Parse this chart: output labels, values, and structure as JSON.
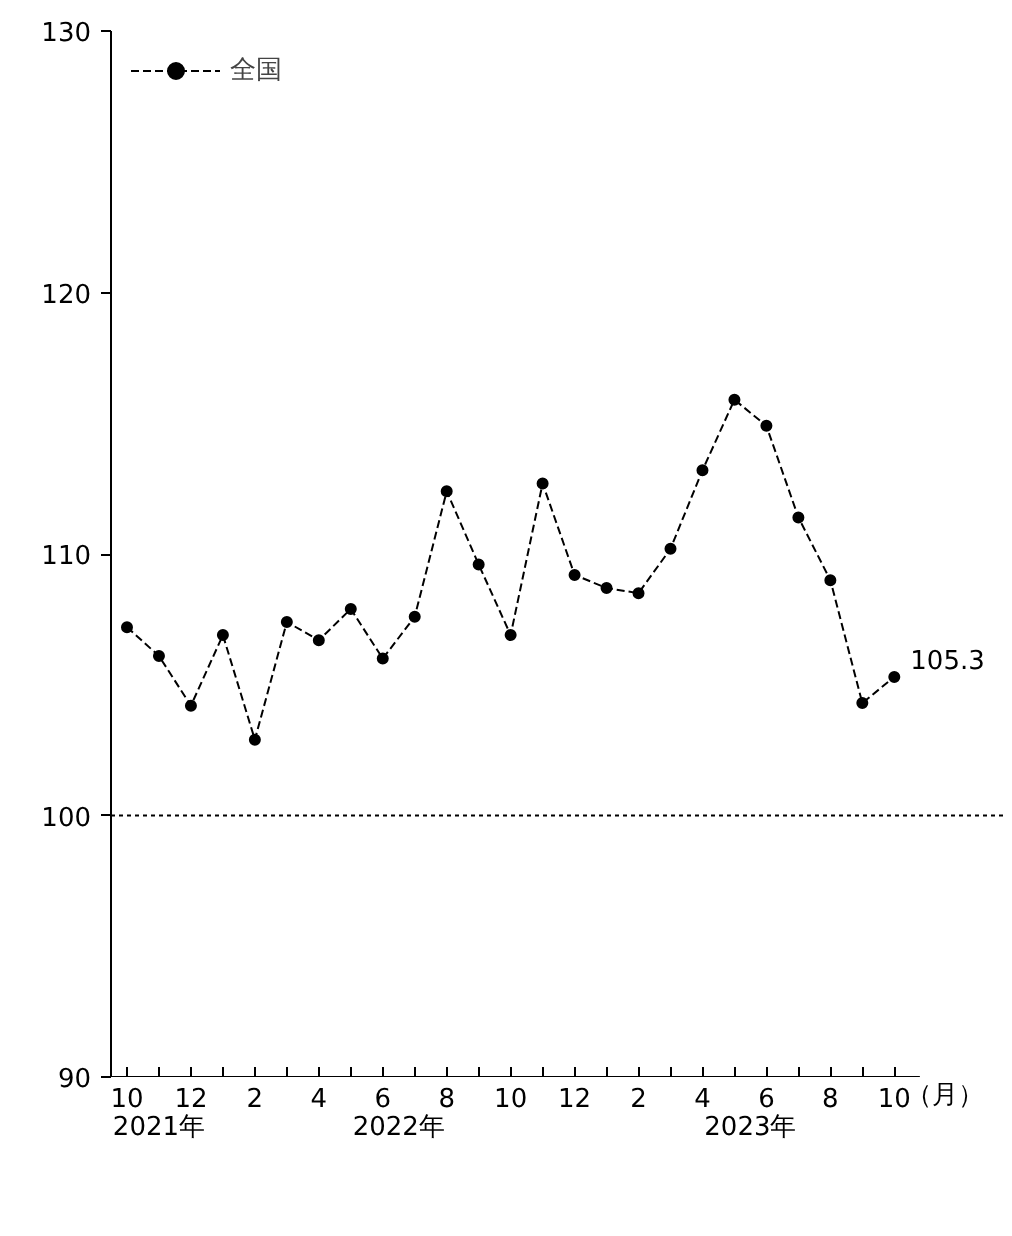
{
  "chart_data": {
    "type": "line",
    "categories": [
      "10",
      null,
      "12",
      null,
      "2",
      null,
      "4",
      null,
      "6",
      null,
      "8",
      null,
      "10",
      null,
      "12",
      null,
      "2",
      null,
      "4",
      null,
      "6",
      null,
      "8",
      null,
      "10"
    ],
    "series": [
      {
        "name": "全国",
        "color": "#000000",
        "values": [
          107.2,
          106.1,
          104.2,
          106.9,
          102.9,
          107.4,
          106.7,
          107.9,
          106.0,
          107.6,
          112.4,
          109.6,
          106.9,
          112.7,
          109.2,
          108.7,
          108.5,
          110.2,
          113.2,
          115.9,
          114.9,
          111.4,
          109.0,
          104.3,
          105.3
        ],
        "value_labels": [
          null,
          null,
          null,
          null,
          null,
          null,
          null,
          null,
          null,
          null,
          null,
          null,
          null,
          null,
          null,
          null,
          null,
          null,
          null,
          null,
          null,
          null,
          null,
          null,
          "105.3"
        ]
      }
    ],
    "xlabel": "（月）",
    "ylim": [
      90,
      130
    ],
    "yticks": [
      90,
      100,
      110,
      120,
      130
    ],
    "ref_lines": [
      {
        "axis": "y",
        "value": 100,
        "line_style": "dotted",
        "color": "#000000"
      }
    ],
    "annotations": [
      "2021年",
      "2022年",
      "2023年"
    ],
    "grid": false,
    "legend": "top left",
    "marker": "circle",
    "line_style": "dashed"
  }
}
